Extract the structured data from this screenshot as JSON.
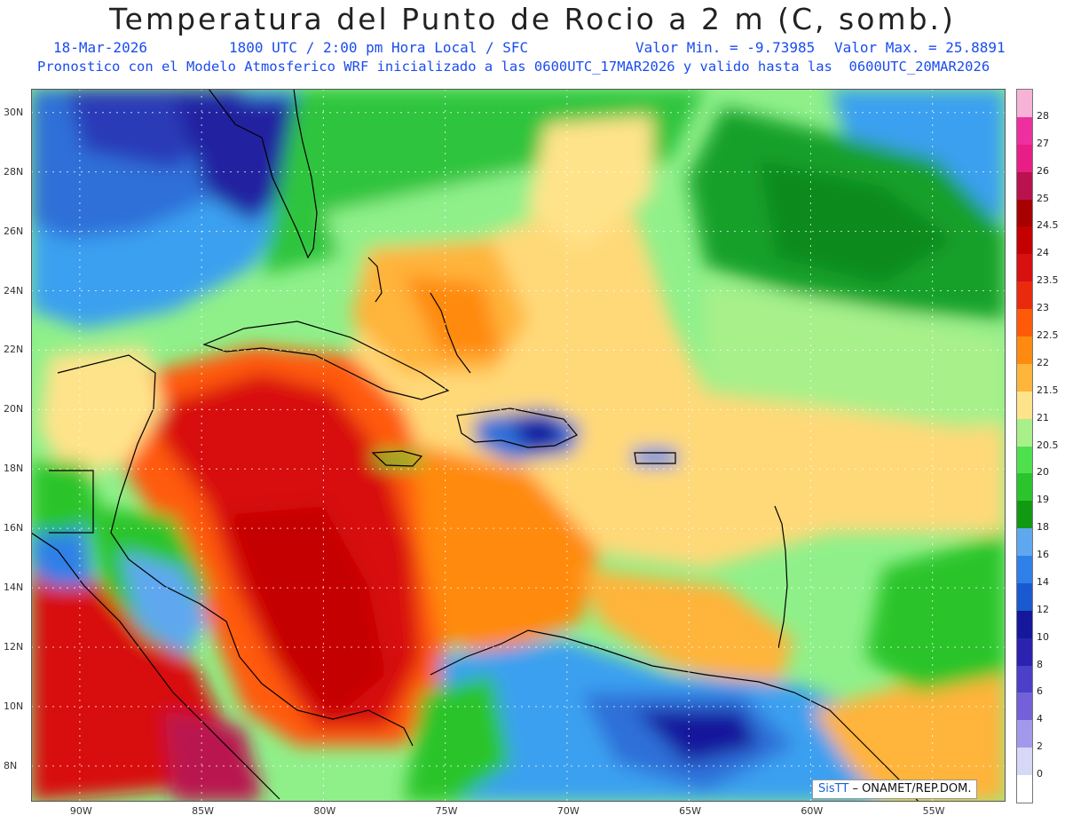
{
  "header": {
    "title": "Temperatura del Punto de Rocio a 2 m (C, somb.)",
    "date": "18-Mar-2026",
    "time": "1800 UTC / 2:00 pm Hora Local / SFC",
    "min_label": "Valor Min. = -9.73985",
    "max_label": "Valor Max. = 25.8891",
    "model_line": "Pronostico con el Modelo Atmosferico WRF inicializado a las 0600UTC_17MAR2026 y valido hasta las  0600UTC_20MAR2026"
  },
  "map": {
    "lon_range": [
      -92,
      -52
    ],
    "lat_range": [
      6.8,
      30.8
    ],
    "lat_labels": [
      "30N",
      "28N",
      "26N",
      "24N",
      "22N",
      "20N",
      "18N",
      "16N",
      "14N",
      "12N",
      "10N",
      "8N"
    ],
    "lat_values": [
      30,
      28,
      26,
      24,
      22,
      20,
      18,
      16,
      14,
      12,
      10,
      8
    ],
    "lon_labels": [
      "90W",
      "85W",
      "80W",
      "75W",
      "70W",
      "65W",
      "60W",
      "55W"
    ],
    "lon_values": [
      -90,
      -85,
      -80,
      -75,
      -70,
      -65,
      -60,
      -55
    ]
  },
  "colorbar": {
    "labels": [
      "28",
      "27",
      "26",
      "25",
      "24.5",
      "24",
      "23.5",
      "23",
      "22.5",
      "22",
      "21.5",
      "21",
      "20.5",
      "20",
      "19",
      "18",
      "16",
      "14",
      "12",
      "10",
      "8",
      "6",
      "4",
      "2",
      "0"
    ],
    "colors": [
      "#f6b3d7",
      "#ee2fa0",
      "#e81e86",
      "#b9124f",
      "#a70000",
      "#c40000",
      "#d81010",
      "#ea2a0c",
      "#ff5a0a",
      "#ff8a10",
      "#ffb43a",
      "#ffe38a",
      "#a8f08a",
      "#4fe04f",
      "#2cc42c",
      "#129912",
      "#5fa8f0",
      "#2f80e8",
      "#1a5ad0",
      "#16189c",
      "#2c22b0",
      "#4c3fc8",
      "#7460d8",
      "#a399ec",
      "#d7d7f7",
      "#ffffff"
    ]
  },
  "credit": {
    "logo": "SisTT",
    "text": "ONAMET/REP.DOM."
  }
}
